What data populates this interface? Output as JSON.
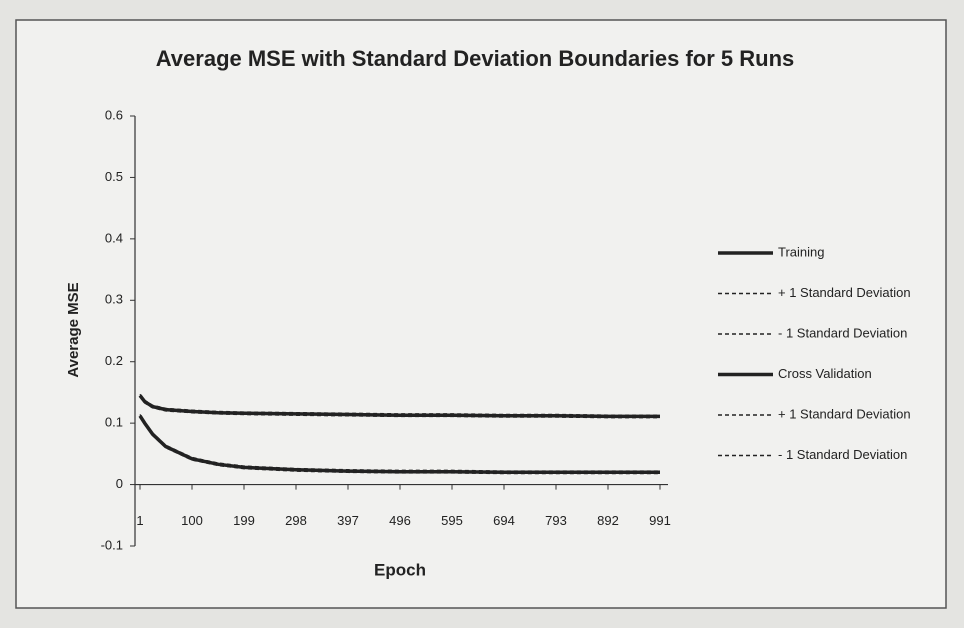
{
  "chart_data": {
    "type": "line",
    "title": "Average MSE with Standard Deviation Boundaries for 5 Runs",
    "x_label": "Epoch",
    "y_label": "Average MSE",
    "x": [
      1,
      10,
      25,
      50,
      100,
      150,
      199,
      298,
      397,
      496,
      595,
      694,
      793,
      892,
      991
    ],
    "xlim": [
      1,
      991
    ],
    "xticks": [
      1,
      100,
      199,
      298,
      397,
      496,
      595,
      694,
      793,
      892,
      991
    ],
    "ylim": [
      -0.1,
      0.6
    ],
    "yticks": [
      -0.1,
      0,
      0.1,
      0.2,
      0.3,
      0.4,
      0.5,
      0.6
    ],
    "grid": false,
    "legend": "right",
    "series": [
      {
        "name": "Training",
        "color": "#222222",
        "dashed": false,
        "values": [
          0.112,
          0.1,
          0.082,
          0.062,
          0.042,
          0.033,
          0.028,
          0.024,
          0.022,
          0.021,
          0.021,
          0.02,
          0.02,
          0.02,
          0.02
        ]
      },
      {
        "name": "+ 1 Standard Deviation",
        "color": "#222222",
        "dashed": true,
        "values": [
          0.114,
          0.102,
          0.084,
          0.064,
          0.044,
          0.035,
          0.03,
          0.026,
          0.024,
          0.023,
          0.023,
          0.022,
          0.022,
          0.022,
          0.022
        ]
      },
      {
        "name": "- 1 Standard Deviation",
        "color": "#222222",
        "dashed": true,
        "values": [
          0.11,
          0.098,
          0.08,
          0.06,
          0.04,
          0.031,
          0.026,
          0.022,
          0.02,
          0.019,
          0.019,
          0.018,
          0.018,
          0.018,
          0.018
        ]
      },
      {
        "name": "Cross Validation",
        "color": "#222222",
        "dashed": false,
        "values": [
          0.145,
          0.135,
          0.127,
          0.122,
          0.119,
          0.117,
          0.116,
          0.115,
          0.114,
          0.113,
          0.113,
          0.112,
          0.112,
          0.111,
          0.111
        ]
      },
      {
        "name": "+ 1 Standard Deviation",
        "color": "#222222",
        "dashed": true,
        "values": [
          0.147,
          0.137,
          0.129,
          0.124,
          0.121,
          0.119,
          0.118,
          0.117,
          0.116,
          0.115,
          0.115,
          0.114,
          0.114,
          0.113,
          0.113
        ]
      },
      {
        "name": "- 1 Standard Deviation",
        "color": "#222222",
        "dashed": true,
        "values": [
          0.143,
          0.133,
          0.125,
          0.12,
          0.117,
          0.115,
          0.114,
          0.113,
          0.112,
          0.111,
          0.111,
          0.11,
          0.11,
          0.109,
          0.109
        ]
      }
    ]
  }
}
